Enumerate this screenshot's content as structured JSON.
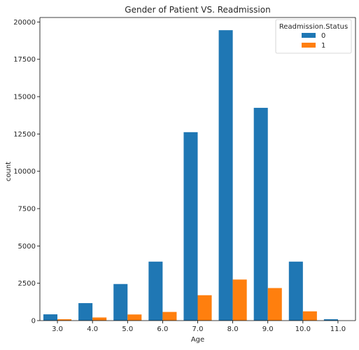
{
  "chart_data": {
    "type": "bar",
    "title": "Gender of Patient VS. Readmission",
    "xlabel": "Age",
    "ylabel": "count",
    "categories": [
      "3.0",
      "4.0",
      "5.0",
      "6.0",
      "7.0",
      "8.0",
      "9.0",
      "10.0",
      "11.0"
    ],
    "series": [
      {
        "name": "0",
        "color": "#1f77b4",
        "values": [
          420,
          1170,
          2450,
          3950,
          12620,
          19450,
          14250,
          3950,
          90
        ]
      },
      {
        "name": "1",
        "color": "#ff7f0e",
        "values": [
          90,
          210,
          410,
          580,
          1700,
          2750,
          2180,
          620,
          0
        ]
      }
    ],
    "ylim": [
      0,
      20300
    ],
    "yticks": [
      0,
      2500,
      5000,
      7500,
      10000,
      12500,
      15000,
      17500,
      20000
    ],
    "ytick_labels": [
      "0",
      "2500",
      "5000",
      "7500",
      "10000",
      "12500",
      "15000",
      "17500",
      "20000"
    ],
    "legend": {
      "title": "Readmission.Status",
      "placement": "top-right"
    },
    "grid": false
  }
}
